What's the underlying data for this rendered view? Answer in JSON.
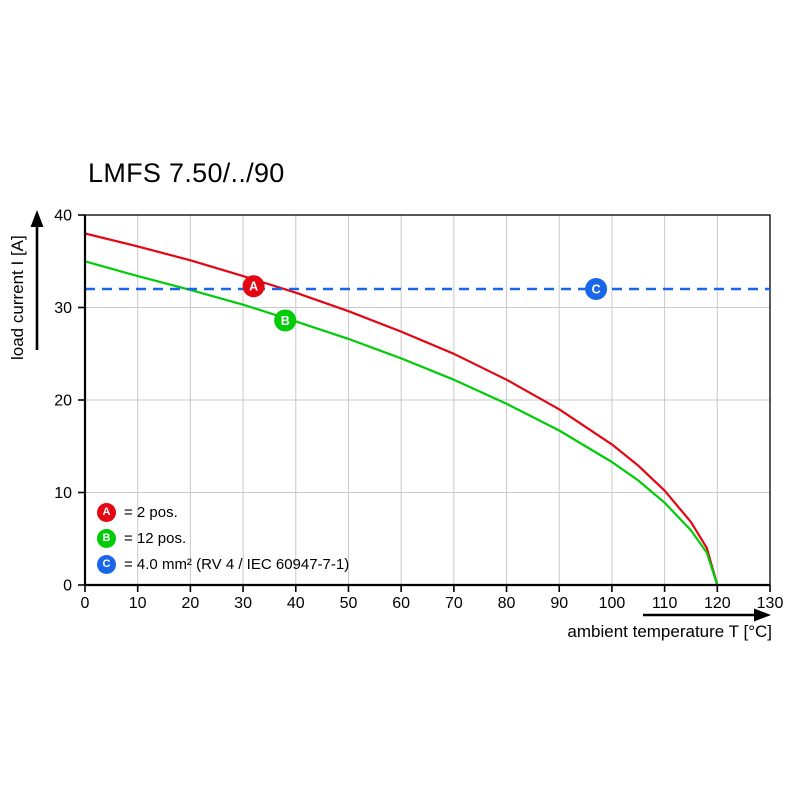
{
  "title": "LMFS 7.50/../90",
  "chart_data": {
    "type": "line",
    "title": "LMFS 7.50/../90",
    "xlabel": "ambient temperature T [°C]",
    "ylabel": "load current I [A]",
    "xlim": [
      0,
      130
    ],
    "ylim": [
      0,
      40
    ],
    "xticks": [
      0,
      10,
      20,
      30,
      40,
      50,
      60,
      70,
      80,
      90,
      100,
      110,
      120,
      130
    ],
    "yticks": [
      0,
      10,
      20,
      30,
      40
    ],
    "grid": true,
    "legend_position": "inside-bottom-left",
    "series": [
      {
        "name": "A",
        "legend_label": "= 2 pos.",
        "color": "#e30613",
        "style": "solid",
        "marker_at": [
          32,
          32.3
        ],
        "points": [
          [
            0,
            38
          ],
          [
            10,
            36.6
          ],
          [
            20,
            35.1
          ],
          [
            30,
            33.4
          ],
          [
            40,
            31.6
          ],
          [
            50,
            29.6
          ],
          [
            60,
            27.4
          ],
          [
            70,
            25.0
          ],
          [
            80,
            22.2
          ],
          [
            90,
            19.0
          ],
          [
            100,
            15.2
          ],
          [
            105,
            12.9
          ],
          [
            110,
            10.2
          ],
          [
            115,
            6.8
          ],
          [
            118,
            4.0
          ],
          [
            120,
            0
          ]
        ]
      },
      {
        "name": "B",
        "legend_label": "= 12 pos.",
        "color": "#00cc07",
        "style": "solid",
        "marker_at": [
          38,
          28.6
        ],
        "points": [
          [
            0,
            35
          ],
          [
            10,
            33.4
          ],
          [
            20,
            31.9
          ],
          [
            30,
            30.3
          ],
          [
            40,
            28.5
          ],
          [
            50,
            26.6
          ],
          [
            60,
            24.5
          ],
          [
            70,
            22.2
          ],
          [
            80,
            19.6
          ],
          [
            90,
            16.7
          ],
          [
            100,
            13.3
          ],
          [
            105,
            11.3
          ],
          [
            110,
            8.9
          ],
          [
            115,
            5.9
          ],
          [
            118,
            3.5
          ],
          [
            120,
            0
          ]
        ]
      },
      {
        "name": "C",
        "legend_label": "= 4.0 mm² (RV 4 / IEC 60947-7-1)",
        "color": "#1a66e8",
        "style": "dashed",
        "marker_at": [
          97,
          32
        ],
        "points": [
          [
            0,
            32
          ],
          [
            130,
            32
          ]
        ]
      }
    ]
  }
}
